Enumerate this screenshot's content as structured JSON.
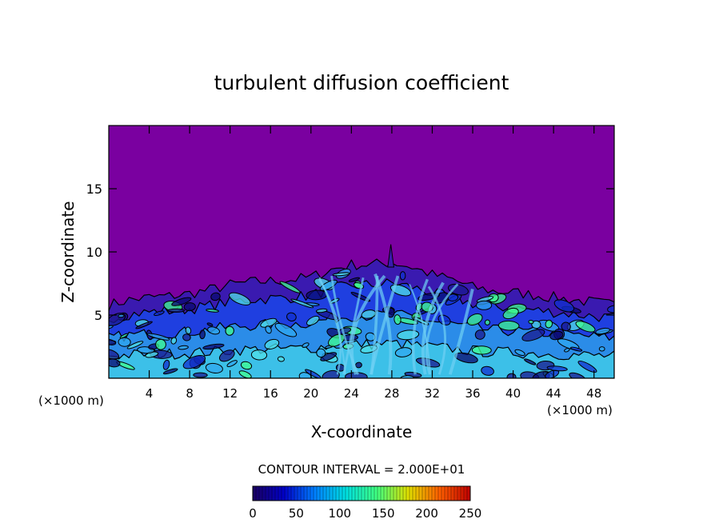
{
  "chart_data": {
    "type": "heatmap",
    "title": "turbulent diffusion coefficient",
    "xlabel": "X-coordinate",
    "ylabel": "Z-coordinate",
    "x_unit_left": "(×1000 m)",
    "x_unit_right": "(×1000 m)",
    "xlim": [
      0,
      50
    ],
    "ylim": [
      0,
      20
    ],
    "x_ticks": [
      4,
      8,
      12,
      16,
      20,
      24,
      28,
      32,
      36,
      40,
      44,
      48
    ],
    "y_ticks": [
      5,
      10,
      15
    ],
    "contour_interval_text": "CONTOUR INTERVAL = 2.000E+01",
    "colorbar": {
      "min": 0,
      "max": 250,
      "ticks": [
        0,
        50,
        100,
        150,
        200,
        250
      ],
      "colors": [
        "#1a0060",
        "#0000c8",
        "#0080ff",
        "#00e0e0",
        "#40ff80",
        "#e0e000",
        "#ff6000",
        "#c00000"
      ]
    },
    "background_color": "#7a00a0",
    "mixed_layer_top_profile": {
      "x": [
        0,
        2,
        4,
        6,
        8,
        10,
        12,
        14,
        16,
        18,
        20,
        22,
        24,
        26,
        28,
        30,
        32,
        34,
        36,
        38,
        40,
        42,
        44,
        46,
        48,
        50
      ],
      "z": [
        5.8,
        6.2,
        6.4,
        6.5,
        6.7,
        7.0,
        7.4,
        7.6,
        7.7,
        7.8,
        8.0,
        8.6,
        9.0,
        9.0,
        9.2,
        8.8,
        8.2,
        7.8,
        7.2,
        6.9,
        6.8,
        6.6,
        6.4,
        6.2,
        6.0,
        5.8
      ]
    }
  }
}
